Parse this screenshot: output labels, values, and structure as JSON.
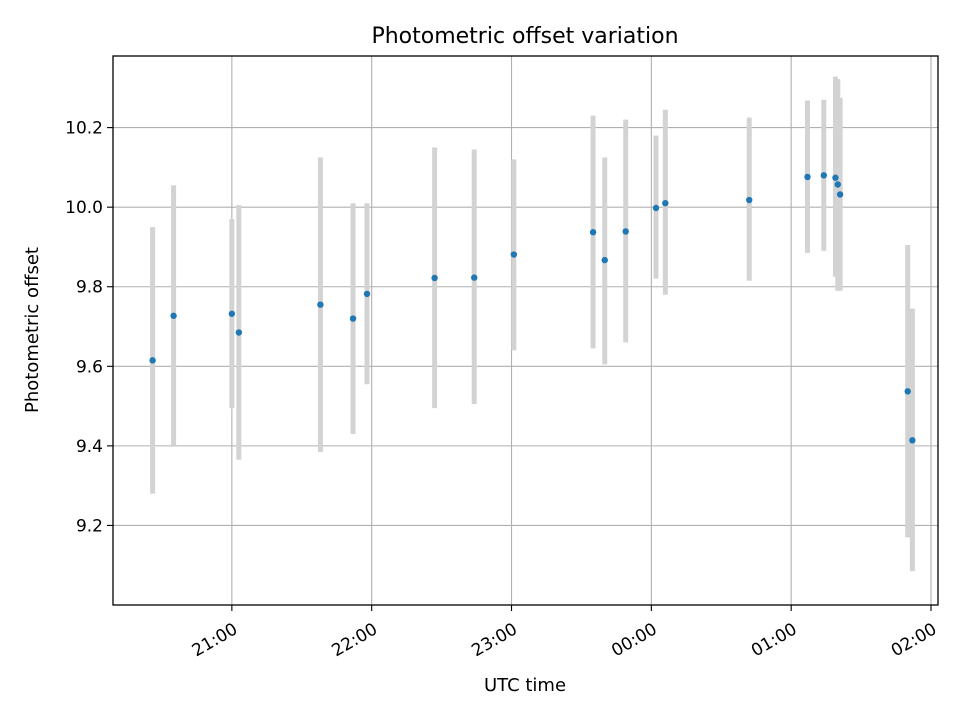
{
  "chart_data": {
    "type": "scatter",
    "title": "Photometric offset variation",
    "xlabel": "UTC time",
    "ylabel": "Photometric offset",
    "x_ticks": [
      "21:00",
      "22:00",
      "23:00",
      "00:00",
      "01:00",
      "02:00"
    ],
    "y_ticks": [
      "9.2",
      "9.4",
      "9.6",
      "9.8",
      "10.0",
      "10.2"
    ],
    "xlim": [
      "20:09",
      "02:03"
    ],
    "ylim": [
      9.0,
      10.38
    ],
    "grid": true,
    "marker_color": "#1f77b4",
    "errorbar_color": "#d3d3d3",
    "series": [
      {
        "points": [
          {
            "x": "20:26",
            "y": 9.615,
            "low": 9.28,
            "high": 9.95
          },
          {
            "x": "20:35",
            "y": 9.727,
            "low": 9.4,
            "high": 10.055
          },
          {
            "x": "21:00",
            "y": 9.732,
            "low": 9.495,
            "high": 9.97
          },
          {
            "x": "21:03",
            "y": 9.685,
            "low": 9.365,
            "high": 10.005
          },
          {
            "x": "21:38",
            "y": 9.755,
            "low": 9.385,
            "high": 10.125
          },
          {
            "x": "21:52",
            "y": 9.72,
            "low": 9.43,
            "high": 10.01
          },
          {
            "x": "21:58",
            "y": 9.782,
            "low": 9.555,
            "high": 10.01
          },
          {
            "x": "22:27",
            "y": 9.822,
            "low": 9.495,
            "high": 10.15
          },
          {
            "x": "22:44",
            "y": 9.823,
            "low": 9.505,
            "high": 10.145
          },
          {
            "x": "23:01",
            "y": 9.881,
            "low": 9.64,
            "high": 10.12
          },
          {
            "x": "23:35",
            "y": 9.937,
            "low": 9.645,
            "high": 10.23
          },
          {
            "x": "23:40",
            "y": 9.867,
            "low": 9.605,
            "high": 10.125
          },
          {
            "x": "23:49",
            "y": 9.939,
            "low": 9.66,
            "high": 10.22
          },
          {
            "x": "00:02",
            "y": 9.998,
            "low": 9.82,
            "high": 10.18
          },
          {
            "x": "00:06",
            "y": 10.01,
            "low": 9.78,
            "high": 10.245
          },
          {
            "x": "00:42",
            "y": 10.018,
            "low": 9.815,
            "high": 10.225
          },
          {
            "x": "01:07",
            "y": 10.076,
            "low": 9.885,
            "high": 10.268
          },
          {
            "x": "01:14",
            "y": 10.08,
            "low": 9.89,
            "high": 10.27
          },
          {
            "x": "01:19",
            "y": 10.074,
            "low": 9.825,
            "high": 10.328
          },
          {
            "x": "01:20",
            "y": 10.057,
            "low": 9.79,
            "high": 10.322
          },
          {
            "x": "01:21",
            "y": 10.032,
            "low": 9.79,
            "high": 10.275
          },
          {
            "x": "01:50",
            "y": 9.537,
            "low": 9.17,
            "high": 9.905
          },
          {
            "x": "01:52",
            "y": 9.414,
            "low": 9.085,
            "high": 9.745
          }
        ]
      }
    ]
  }
}
